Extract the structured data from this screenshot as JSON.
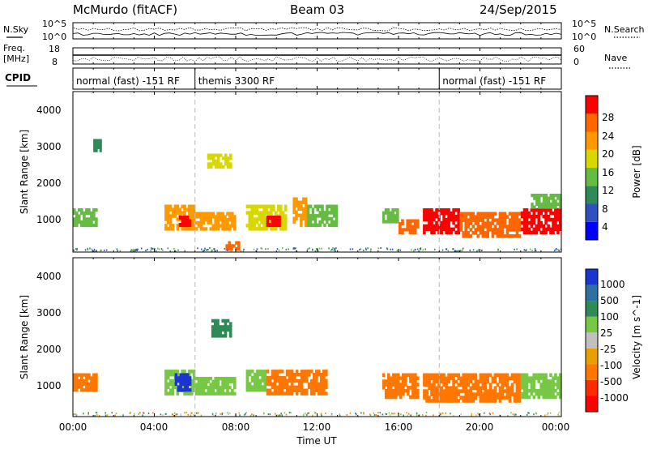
{
  "header": {
    "station": "McMurdo (fitACF)",
    "beam": "Beam 03",
    "date": "24/Sep/2015"
  },
  "noise_panel": {
    "left_label": "N.Sky",
    "right_label": "N.Search",
    "left_ticks": [
      "10^5",
      "10^0"
    ],
    "right_ticks": [
      "10^5",
      "10^0"
    ]
  },
  "freq_panel": {
    "left_label_1": "Freq.",
    "left_label_2": "[MHz]",
    "left_ticks": [
      "18",
      "8"
    ],
    "right_label": "Nave",
    "right_ticks": [
      "60",
      "0"
    ]
  },
  "cpid": {
    "label": "CPID",
    "segments": [
      {
        "text": "normal (fast) -151 RF",
        "start_hour": 0,
        "end_hour": 6
      },
      {
        "text": "themis 3300 RF",
        "start_hour": 6,
        "end_hour": 18
      },
      {
        "text": "normal (fast) -151 RF",
        "start_hour": 18,
        "end_hour": 24
      }
    ]
  },
  "x_axis": {
    "title": "Time UT",
    "ticks": [
      "00:00",
      "04:00",
      "08:00",
      "12:00",
      "16:00",
      "20:00",
      "00:00"
    ]
  },
  "power_panel": {
    "ylabel": "Slant Range [km]",
    "yticks": [
      "4000",
      "3000",
      "2000",
      "1000"
    ],
    "colorbar_title": "Power [dB]",
    "colorbar_ticks": [
      "28",
      "24",
      "20",
      "16",
      "12",
      "8",
      "4"
    ],
    "colors": [
      "#0000ff",
      "#3050c0",
      "#2e8b57",
      "#66bb44",
      "#d8d800",
      "#ff9900",
      "#ff6600",
      "#ff0000"
    ]
  },
  "velocity_panel": {
    "ylabel": "Slant Range [km]",
    "yticks": [
      "4000",
      "3000",
      "2000",
      "1000"
    ],
    "colorbar_title": "Velocity [m s^-1]",
    "colorbar_ticks": [
      "1000",
      "500",
      "100",
      "25",
      "-25",
      "-100",
      "-500",
      "-1000"
    ],
    "colors": [
      "#1a35d0",
      "#2e70a0",
      "#2e8b57",
      "#77c844",
      "#c0c0c0",
      "#e8a000",
      "#ff7700",
      "#ff2a00",
      "#ff0000"
    ]
  },
  "chart_data": [
    {
      "type": "heatmap",
      "title": "Power [dB]",
      "xlabel": "Time UT",
      "ylabel": "Slant Range [km]",
      "xlim": [
        0,
        24
      ],
      "ylim": [
        200,
        4600
      ],
      "clim": [
        0,
        32
      ],
      "cells": [
        {
          "t": [
            0.0,
            1.2
          ],
          "r": [
            900,
            1400
          ],
          "v": 14
        },
        {
          "t": [
            1.0,
            1.4
          ],
          "r": [
            2950,
            3300
          ],
          "v": 10
        },
        {
          "t": [
            4.5,
            6.0
          ],
          "r": [
            800,
            1500
          ],
          "v": 20
        },
        {
          "t": [
            5.2,
            5.8
          ],
          "r": [
            900,
            1200
          ],
          "v": 28
        },
        {
          "t": [
            6.0,
            8.0
          ],
          "r": [
            800,
            1300
          ],
          "v": 22
        },
        {
          "t": [
            6.6,
            7.8
          ],
          "r": [
            2500,
            2900
          ],
          "v": 18
        },
        {
          "t": [
            7.5,
            8.2
          ],
          "r": [
            250,
            500
          ],
          "v": 26
        },
        {
          "t": [
            8.5,
            10.5
          ],
          "r": [
            800,
            1500
          ],
          "v": 18
        },
        {
          "t": [
            9.5,
            10.2
          ],
          "r": [
            900,
            1200
          ],
          "v": 28
        },
        {
          "t": [
            10.8,
            11.5
          ],
          "r": [
            900,
            1700
          ],
          "v": 20
        },
        {
          "t": [
            11.5,
            13.0
          ],
          "r": [
            900,
            1500
          ],
          "v": 14
        },
        {
          "t": [
            15.2,
            16.0
          ],
          "r": [
            1000,
            1400
          ],
          "v": 12
        },
        {
          "t": [
            16.0,
            17.0
          ],
          "r": [
            700,
            1100
          ],
          "v": 24
        },
        {
          "t": [
            17.2,
            19.0
          ],
          "r": [
            700,
            1400
          ],
          "v": 30
        },
        {
          "t": [
            19.0,
            22.0
          ],
          "r": [
            600,
            1300
          ],
          "v": 26
        },
        {
          "t": [
            22.0,
            24.0
          ],
          "r": [
            700,
            1400
          ],
          "v": 28
        },
        {
          "t": [
            22.5,
            24.0
          ],
          "r": [
            1400,
            1800
          ],
          "v": 12
        }
      ]
    },
    {
      "type": "heatmap",
      "title": "Velocity [m s^-1]",
      "xlabel": "Time UT",
      "ylabel": "Slant Range [km]",
      "xlim": [
        0,
        24
      ],
      "ylim": [
        200,
        4600
      ],
      "clim": [
        -1000,
        1000
      ],
      "cells": [
        {
          "t": [
            0.0,
            1.2
          ],
          "r": [
            900,
            1400
          ],
          "v": -150
        },
        {
          "t": [
            4.5,
            6.0
          ],
          "r": [
            800,
            1500
          ],
          "v": 80
        },
        {
          "t": [
            5.0,
            5.8
          ],
          "r": [
            900,
            1400
          ],
          "v": 800
        },
        {
          "t": [
            6.0,
            8.0
          ],
          "r": [
            800,
            1300
          ],
          "v": 60
        },
        {
          "t": [
            6.8,
            7.8
          ],
          "r": [
            2400,
            2900
          ],
          "v": 120
        },
        {
          "t": [
            8.5,
            9.5
          ],
          "r": [
            900,
            1500
          ],
          "v": 30
        },
        {
          "t": [
            9.5,
            12.5
          ],
          "r": [
            800,
            1500
          ],
          "v": -250
        },
        {
          "t": [
            15.2,
            17.0
          ],
          "r": [
            700,
            1400
          ],
          "v": -200
        },
        {
          "t": [
            17.2,
            22.0
          ],
          "r": [
            600,
            1400
          ],
          "v": -300
        },
        {
          "t": [
            22.0,
            24.0
          ],
          "r": [
            700,
            1400
          ],
          "v": 60
        }
      ]
    }
  ]
}
